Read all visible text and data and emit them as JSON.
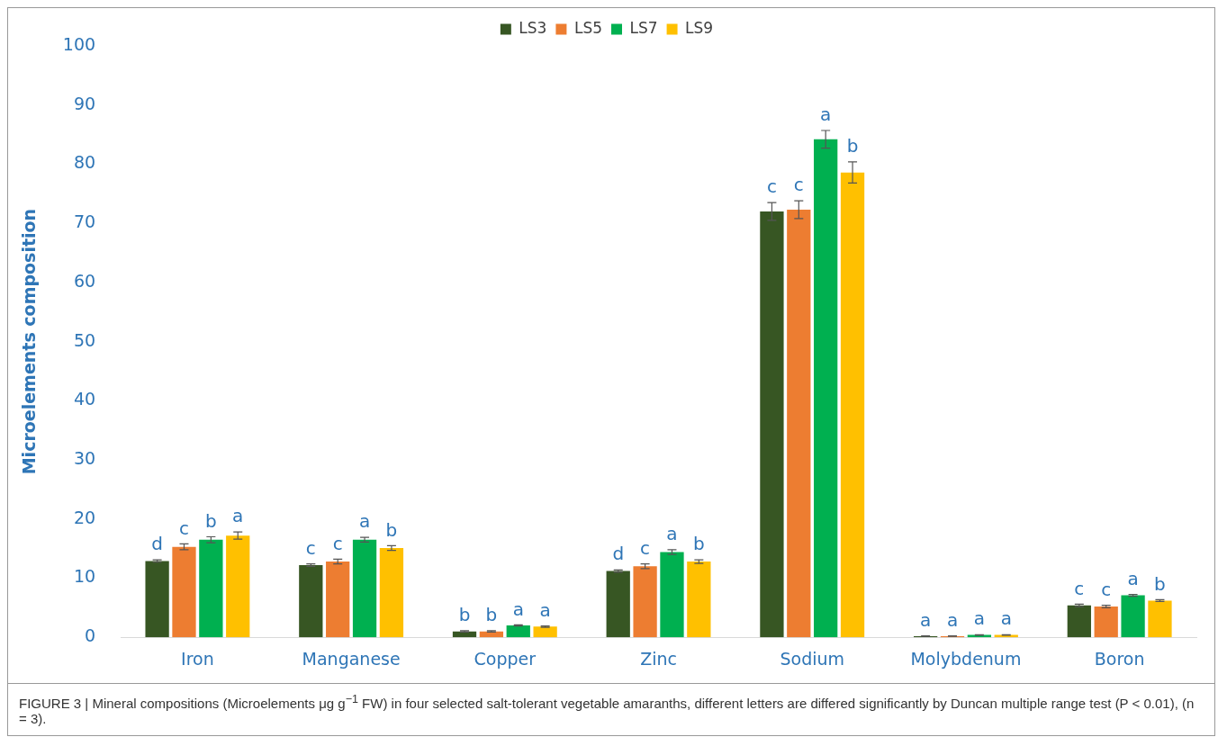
{
  "chart_data": {
    "type": "bar",
    "ylabel": "Microelements composition",
    "categories": [
      "Iron",
      "Manganese",
      "Copper",
      "Zinc",
      "Sodium",
      "Molybdenum",
      "Boron"
    ],
    "series": [
      {
        "name": "LS3",
        "color": "#375623",
        "values": [
          12.9,
          12.2,
          1.0,
          11.2,
          72.0,
          0.2,
          5.4
        ],
        "errors": [
          0.2,
          0.2,
          0.1,
          0.2,
          1.5,
          0.05,
          0.2
        ],
        "value_labels": [
          "d",
          "c",
          "b",
          "d",
          "c",
          "a",
          "c"
        ]
      },
      {
        "name": "LS5",
        "color": "#ed7d31",
        "values": [
          15.3,
          12.8,
          1.0,
          12.0,
          72.3,
          0.2,
          5.2
        ],
        "errors": [
          0.5,
          0.4,
          0.1,
          0.4,
          1.5,
          0.05,
          0.2
        ],
        "value_labels": [
          "c",
          "c",
          "b",
          "c",
          "c",
          "a",
          "c"
        ]
      },
      {
        "name": "LS7",
        "color": "#00b050",
        "values": [
          16.5,
          16.5,
          2.0,
          14.4,
          84.2,
          0.4,
          7.1
        ],
        "errors": [
          0.5,
          0.4,
          0.1,
          0.4,
          1.5,
          0.05,
          0.15
        ],
        "value_labels": [
          "b",
          "a",
          "a",
          "a",
          "a",
          "a",
          "a"
        ]
      },
      {
        "name": "LS9",
        "color": "#ffc000",
        "values": [
          17.2,
          15.1,
          1.8,
          12.8,
          78.6,
          0.4,
          6.2
        ],
        "errors": [
          0.6,
          0.4,
          0.1,
          0.3,
          1.8,
          0.05,
          0.15
        ],
        "value_labels": [
          "a",
          "b",
          "a",
          "b",
          "b",
          "a",
          "b"
        ]
      }
    ],
    "ylim": [
      0,
      100
    ],
    "yticks": [
      0,
      10,
      20,
      30,
      40,
      50,
      60,
      70,
      80,
      90,
      100
    ],
    "grid": false,
    "legend": "top",
    "annotations": [
      "FIGURE 3 | Mineral compositions (Microelements μg g$^{−1}$ FW) in four selected salt-tolerant vegetable amaranths, different letters are differed significantly by Duncan multiple range test (P < 0.01), (n = 3)."
    ]
  }
}
